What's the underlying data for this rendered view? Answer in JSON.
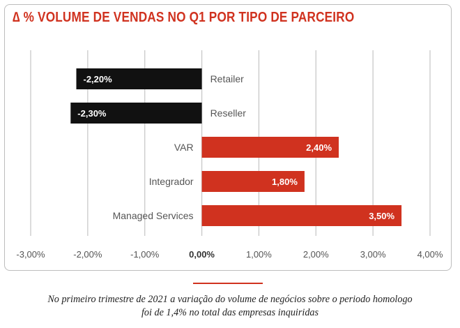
{
  "colors": {
    "accent": "#d0321f",
    "negative": "#111111",
    "grid": "#c8c8c8",
    "text": "#555555",
    "border": "#bdbdbd"
  },
  "chart_data": {
    "type": "bar",
    "orientation": "horizontal",
    "title": "∆ % VOLUME DE VENDAS NO Q1 POR TIPO DE PARCEIRO",
    "categories": [
      "Retailer",
      "Reseller",
      "VAR",
      "Integrador",
      "Managed Services"
    ],
    "values": [
      -2.2,
      -2.3,
      2.4,
      1.8,
      3.5
    ],
    "value_labels": [
      "-2,20%",
      "-2,30%",
      "2,40%",
      "1,80%",
      "3,50%"
    ],
    "xlim": [
      -3,
      4
    ],
    "xticks": [
      -3,
      -2,
      -1,
      0,
      1,
      2,
      3,
      4
    ],
    "xtick_labels": [
      "-3,00%",
      "-2,00%",
      "-1,00%",
      "0,00%",
      "1,00%",
      "2,00%",
      "3,00%",
      "4,00%"
    ],
    "unit": "%",
    "grid": true,
    "negative_color": "#111111",
    "positive_color": "#d0321f"
  },
  "caption": {
    "line1": "No primeiro trimestre de 2021 a variação do volume de negócios sobre o periodo homologo",
    "line2": "foi de 1,4% no total das empresas inquiridas"
  }
}
